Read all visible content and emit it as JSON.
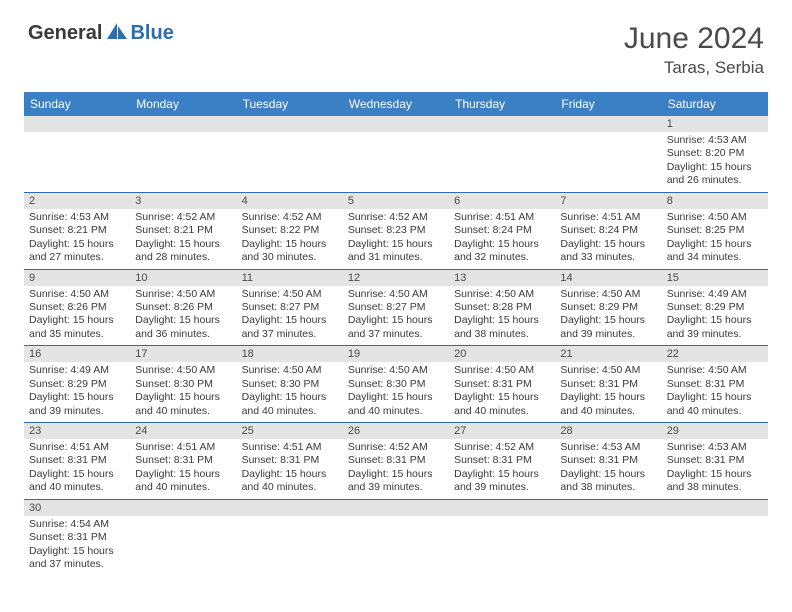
{
  "logo": {
    "part1": "General",
    "part2": "Blue"
  },
  "title": "June 2024",
  "location": "Taras, Serbia",
  "colors": {
    "header_bg": "#3b7fc4",
    "header_text": "#ffffff",
    "daynum_bg": "#e4e4e4",
    "border": "#2a6db0",
    "text": "#3a3a3a",
    "logo_gray": "#3a3a3a",
    "logo_blue": "#2a6db0"
  },
  "weekdays": [
    "Sunday",
    "Monday",
    "Tuesday",
    "Wednesday",
    "Thursday",
    "Friday",
    "Saturday"
  ],
  "cell_font_size_pt": 10.5,
  "daynum_font_size_pt": 11,
  "weeks": [
    [
      {
        "n": "",
        "sr": "",
        "ss": "",
        "dl": ""
      },
      {
        "n": "",
        "sr": "",
        "ss": "",
        "dl": ""
      },
      {
        "n": "",
        "sr": "",
        "ss": "",
        "dl": ""
      },
      {
        "n": "",
        "sr": "",
        "ss": "",
        "dl": ""
      },
      {
        "n": "",
        "sr": "",
        "ss": "",
        "dl": ""
      },
      {
        "n": "",
        "sr": "",
        "ss": "",
        "dl": ""
      },
      {
        "n": "1",
        "sr": "Sunrise: 4:53 AM",
        "ss": "Sunset: 8:20 PM",
        "dl": "Daylight: 15 hours and 26 minutes."
      }
    ],
    [
      {
        "n": "2",
        "sr": "Sunrise: 4:53 AM",
        "ss": "Sunset: 8:21 PM",
        "dl": "Daylight: 15 hours and 27 minutes."
      },
      {
        "n": "3",
        "sr": "Sunrise: 4:52 AM",
        "ss": "Sunset: 8:21 PM",
        "dl": "Daylight: 15 hours and 28 minutes."
      },
      {
        "n": "4",
        "sr": "Sunrise: 4:52 AM",
        "ss": "Sunset: 8:22 PM",
        "dl": "Daylight: 15 hours and 30 minutes."
      },
      {
        "n": "5",
        "sr": "Sunrise: 4:52 AM",
        "ss": "Sunset: 8:23 PM",
        "dl": "Daylight: 15 hours and 31 minutes."
      },
      {
        "n": "6",
        "sr": "Sunrise: 4:51 AM",
        "ss": "Sunset: 8:24 PM",
        "dl": "Daylight: 15 hours and 32 minutes."
      },
      {
        "n": "7",
        "sr": "Sunrise: 4:51 AM",
        "ss": "Sunset: 8:24 PM",
        "dl": "Daylight: 15 hours and 33 minutes."
      },
      {
        "n": "8",
        "sr": "Sunrise: 4:50 AM",
        "ss": "Sunset: 8:25 PM",
        "dl": "Daylight: 15 hours and 34 minutes."
      }
    ],
    [
      {
        "n": "9",
        "sr": "Sunrise: 4:50 AM",
        "ss": "Sunset: 8:26 PM",
        "dl": "Daylight: 15 hours and 35 minutes."
      },
      {
        "n": "10",
        "sr": "Sunrise: 4:50 AM",
        "ss": "Sunset: 8:26 PM",
        "dl": "Daylight: 15 hours and 36 minutes."
      },
      {
        "n": "11",
        "sr": "Sunrise: 4:50 AM",
        "ss": "Sunset: 8:27 PM",
        "dl": "Daylight: 15 hours and 37 minutes."
      },
      {
        "n": "12",
        "sr": "Sunrise: 4:50 AM",
        "ss": "Sunset: 8:27 PM",
        "dl": "Daylight: 15 hours and 37 minutes."
      },
      {
        "n": "13",
        "sr": "Sunrise: 4:50 AM",
        "ss": "Sunset: 8:28 PM",
        "dl": "Daylight: 15 hours and 38 minutes."
      },
      {
        "n": "14",
        "sr": "Sunrise: 4:50 AM",
        "ss": "Sunset: 8:29 PM",
        "dl": "Daylight: 15 hours and 39 minutes."
      },
      {
        "n": "15",
        "sr": "Sunrise: 4:49 AM",
        "ss": "Sunset: 8:29 PM",
        "dl": "Daylight: 15 hours and 39 minutes."
      }
    ],
    [
      {
        "n": "16",
        "sr": "Sunrise: 4:49 AM",
        "ss": "Sunset: 8:29 PM",
        "dl": "Daylight: 15 hours and 39 minutes."
      },
      {
        "n": "17",
        "sr": "Sunrise: 4:50 AM",
        "ss": "Sunset: 8:30 PM",
        "dl": "Daylight: 15 hours and 40 minutes."
      },
      {
        "n": "18",
        "sr": "Sunrise: 4:50 AM",
        "ss": "Sunset: 8:30 PM",
        "dl": "Daylight: 15 hours and 40 minutes."
      },
      {
        "n": "19",
        "sr": "Sunrise: 4:50 AM",
        "ss": "Sunset: 8:30 PM",
        "dl": "Daylight: 15 hours and 40 minutes."
      },
      {
        "n": "20",
        "sr": "Sunrise: 4:50 AM",
        "ss": "Sunset: 8:31 PM",
        "dl": "Daylight: 15 hours and 40 minutes."
      },
      {
        "n": "21",
        "sr": "Sunrise: 4:50 AM",
        "ss": "Sunset: 8:31 PM",
        "dl": "Daylight: 15 hours and 40 minutes."
      },
      {
        "n": "22",
        "sr": "Sunrise: 4:50 AM",
        "ss": "Sunset: 8:31 PM",
        "dl": "Daylight: 15 hours and 40 minutes."
      }
    ],
    [
      {
        "n": "23",
        "sr": "Sunrise: 4:51 AM",
        "ss": "Sunset: 8:31 PM",
        "dl": "Daylight: 15 hours and 40 minutes."
      },
      {
        "n": "24",
        "sr": "Sunrise: 4:51 AM",
        "ss": "Sunset: 8:31 PM",
        "dl": "Daylight: 15 hours and 40 minutes."
      },
      {
        "n": "25",
        "sr": "Sunrise: 4:51 AM",
        "ss": "Sunset: 8:31 PM",
        "dl": "Daylight: 15 hours and 40 minutes."
      },
      {
        "n": "26",
        "sr": "Sunrise: 4:52 AM",
        "ss": "Sunset: 8:31 PM",
        "dl": "Daylight: 15 hours and 39 minutes."
      },
      {
        "n": "27",
        "sr": "Sunrise: 4:52 AM",
        "ss": "Sunset: 8:31 PM",
        "dl": "Daylight: 15 hours and 39 minutes."
      },
      {
        "n": "28",
        "sr": "Sunrise: 4:53 AM",
        "ss": "Sunset: 8:31 PM",
        "dl": "Daylight: 15 hours and 38 minutes."
      },
      {
        "n": "29",
        "sr": "Sunrise: 4:53 AM",
        "ss": "Sunset: 8:31 PM",
        "dl": "Daylight: 15 hours and 38 minutes."
      }
    ],
    [
      {
        "n": "30",
        "sr": "Sunrise: 4:54 AM",
        "ss": "Sunset: 8:31 PM",
        "dl": "Daylight: 15 hours and 37 minutes."
      },
      {
        "n": "",
        "sr": "",
        "ss": "",
        "dl": ""
      },
      {
        "n": "",
        "sr": "",
        "ss": "",
        "dl": ""
      },
      {
        "n": "",
        "sr": "",
        "ss": "",
        "dl": ""
      },
      {
        "n": "",
        "sr": "",
        "ss": "",
        "dl": ""
      },
      {
        "n": "",
        "sr": "",
        "ss": "",
        "dl": ""
      },
      {
        "n": "",
        "sr": "",
        "ss": "",
        "dl": ""
      }
    ]
  ]
}
